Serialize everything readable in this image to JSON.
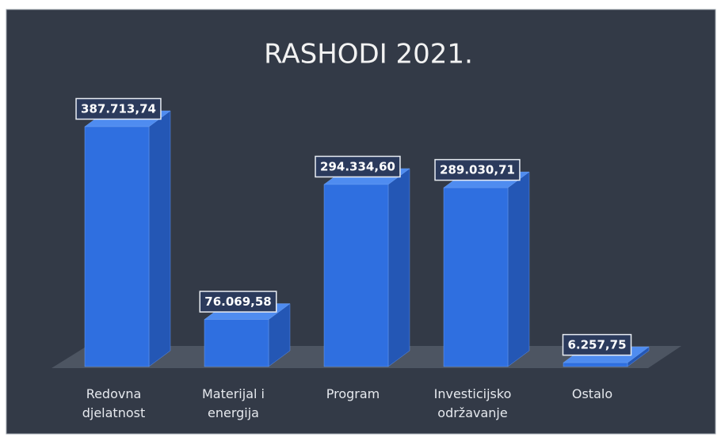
{
  "chart_data": {
    "type": "bar3d",
    "title": "RASHODI 2021.",
    "categories": [
      "Redovna djelatnost",
      "Materijal i energija",
      "Program",
      "Investicijsko održavanje",
      "Ostalo"
    ],
    "values": [
      387713.74,
      76069.58,
      294334.6,
      289030.71,
      6257.75
    ],
    "value_labels": [
      "387.713,74",
      "76.069,58",
      "294.334,60",
      "289.030,71",
      "6.257,75"
    ],
    "color": "#2f6fe0"
  }
}
